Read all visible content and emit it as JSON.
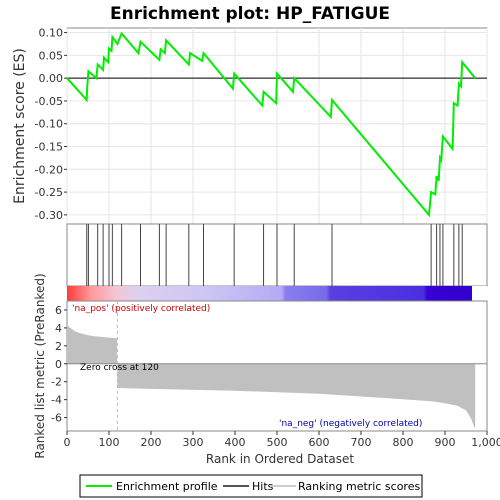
{
  "title": "Enrichment plot: HP_FATIGUE",
  "chart_data": {
    "type": "line",
    "title": "Enrichment plot: HP_FATIGUE",
    "enrichment_panel": {
      "ylabel": "Enrichment score (ES)",
      "ylim": [
        -0.32,
        0.11
      ],
      "yticks": [
        0.1,
        0.05,
        0.0,
        -0.05,
        -0.1,
        -0.15,
        -0.2,
        -0.25,
        -0.3
      ],
      "ytick_labels": [
        "0.10",
        "0.05",
        "0.00",
        "-0.05",
        "-0.10",
        "-0.15",
        "-0.20",
        "-0.25",
        "-0.30"
      ],
      "series": [
        {
          "name": "Enrichment profile",
          "color": "#00ee00",
          "points": [
            [
              0,
              0.0
            ],
            [
              47,
              -0.048
            ],
            [
              48,
              -0.02
            ],
            [
              51,
              0.015
            ],
            [
              70,
              0.0
            ],
            [
              73,
              0.03
            ],
            [
              86,
              0.018
            ],
            [
              88,
              0.045
            ],
            [
              98,
              0.035
            ],
            [
              100,
              0.065
            ],
            [
              106,
              0.06
            ],
            [
              108,
              0.09
            ],
            [
              120,
              0.075
            ],
            [
              130,
              0.098
            ],
            [
              170,
              0.055
            ],
            [
              175,
              0.08
            ],
            [
              220,
              0.04
            ],
            [
              223,
              0.063
            ],
            [
              233,
              0.055
            ],
            [
              236,
              0.083
            ],
            [
              290,
              0.03
            ],
            [
              293,
              0.055
            ],
            [
              322,
              0.038
            ],
            [
              325,
              0.055
            ],
            [
              395,
              -0.023
            ],
            [
              398,
              0.01
            ],
            [
              465,
              -0.06
            ],
            [
              468,
              -0.03
            ],
            [
              498,
              -0.055
            ],
            [
              500,
              0.01
            ],
            [
              538,
              -0.03
            ],
            [
              541,
              0.0
            ],
            [
              628,
              -0.085
            ],
            [
              631,
              -0.048
            ],
            [
              862,
              -0.3
            ],
            [
              867,
              -0.25
            ],
            [
              877,
              -0.255
            ],
            [
              880,
              -0.215
            ],
            [
              885,
              -0.225
            ],
            [
              888,
              -0.175
            ],
            [
              891,
              -0.18
            ],
            [
              895,
              -0.128
            ],
            [
              918,
              -0.155
            ],
            [
              921,
              -0.055
            ],
            [
              930,
              -0.06
            ],
            [
              933,
              -0.012
            ],
            [
              938,
              -0.018
            ],
            [
              941,
              0.035
            ],
            [
              972,
              0.0
            ]
          ]
        }
      ]
    },
    "hits": {
      "name": "Hits",
      "positions": [
        47,
        51,
        73,
        86,
        100,
        108,
        130,
        175,
        220,
        236,
        290,
        325,
        398,
        468,
        500,
        541,
        631,
        867,
        880,
        888,
        895,
        921,
        933,
        941
      ]
    },
    "metric_panel": {
      "ylabel": "Ranked list metric (PreRanked)",
      "ylim": [
        -7.5,
        7
      ],
      "yticks": [
        6,
        4,
        2,
        0,
        -2,
        -4,
        -6
      ],
      "ytick_labels": [
        "6",
        "4",
        "2",
        "0",
        "-2",
        "-4",
        "-6"
      ],
      "series_name": "Ranking metric scores",
      "profile": [
        [
          0,
          4.4
        ],
        [
          5,
          4.1
        ],
        [
          20,
          3.6
        ],
        [
          40,
          3.3
        ],
        [
          60,
          3.1
        ],
        [
          90,
          2.95
        ],
        [
          119,
          2.85
        ],
        [
          120,
          -2.7
        ],
        [
          200,
          -2.8
        ],
        [
          400,
          -3.0
        ],
        [
          600,
          -3.35
        ],
        [
          800,
          -3.95
        ],
        [
          870,
          -4.2
        ],
        [
          900,
          -4.4
        ],
        [
          930,
          -4.7
        ],
        [
          950,
          -5.2
        ],
        [
          962,
          -6.1
        ],
        [
          969,
          -7.0
        ],
        [
          972,
          -7.2
        ]
      ],
      "positive_label": "'na_pos' (positively correlated)",
      "negative_label": "'na_neg' (negatively correlated)",
      "zero_cross_label": "Zero cross at 120",
      "zero_cross": 120
    },
    "xlabel": "Rank in Ordered Dataset",
    "xlim": [
      0,
      1000
    ],
    "xticks": [
      0,
      100,
      200,
      300,
      400,
      500,
      600,
      700,
      800,
      900,
      1000
    ],
    "xtick_labels": [
      "0",
      "100",
      "200",
      "300",
      "400",
      "500",
      "600",
      "700",
      "800",
      "900",
      "1,000"
    ],
    "n_genes": 972,
    "legend": {
      "placement": "bottom",
      "items": [
        {
          "label": "Enrichment profile",
          "color": "#00ee00"
        },
        {
          "label": "Hits",
          "color": "#555555"
        },
        {
          "label": "Ranking metric scores",
          "color": "#cccccc"
        }
      ]
    }
  }
}
